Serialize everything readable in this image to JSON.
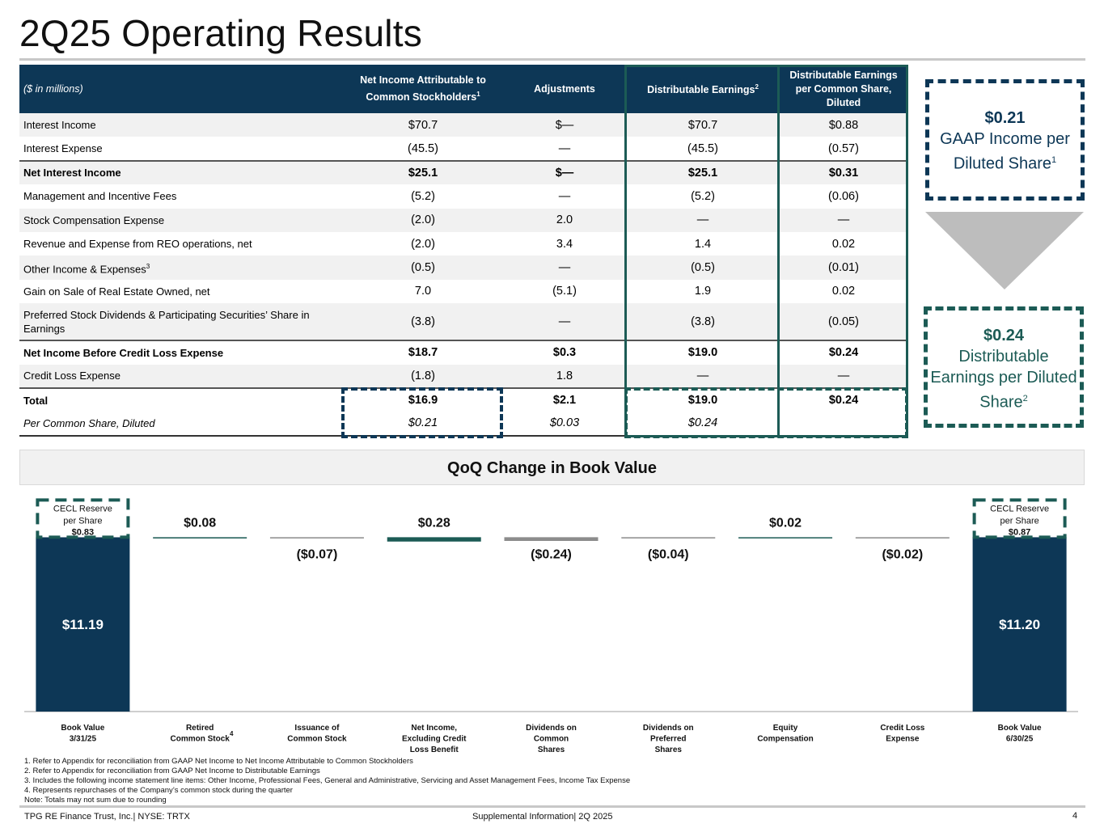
{
  "page": {
    "title": "2Q25 Operating Results"
  },
  "table": {
    "headers": [
      {
        "text": "($ in millions)",
        "sup": ""
      },
      {
        "text": "Net Income Attributable to Common Stockholders",
        "sup": "1"
      },
      {
        "text": "Adjustments",
        "sup": ""
      },
      {
        "text": "Distributable Earnings",
        "sup": "2"
      },
      {
        "text": "Distributable Earnings per Common Share, Diluted",
        "sup": ""
      }
    ],
    "rows": [
      {
        "label": "Interest Income",
        "sup": "",
        "values": [
          "$70.7",
          "$—",
          "$70.7",
          "$0.88"
        ]
      },
      {
        "label": "Interest Expense",
        "sup": "",
        "values": [
          "(45.5)",
          "—",
          "(45.5)",
          "(0.57)"
        ]
      },
      {
        "label": "Net Interest Income",
        "sup": "",
        "values": [
          "$25.1",
          "$—",
          "$25.1",
          "$0.31"
        ]
      },
      {
        "label": "Management and Incentive Fees",
        "sup": "",
        "values": [
          "(5.2)",
          "—",
          "(5.2)",
          "(0.06)"
        ]
      },
      {
        "label": "Stock Compensation Expense",
        "sup": "",
        "values": [
          "(2.0)",
          "2.0",
          "—",
          "—"
        ]
      },
      {
        "label": "Revenue and Expense from REO operations, net",
        "sup": "",
        "values": [
          "(2.0)",
          "3.4",
          "1.4",
          "0.02"
        ]
      },
      {
        "label": "Other Income & Expenses",
        "sup": "3",
        "values": [
          "(0.5)",
          "—",
          "(0.5)",
          "(0.01)"
        ]
      },
      {
        "label": "Gain on Sale of Real Estate Owned, net",
        "sup": "",
        "values": [
          "7.0",
          "(5.1)",
          "1.9",
          "0.02"
        ]
      },
      {
        "label": "Preferred Stock Dividends & Participating Securities’ Share in Earnings",
        "sup": "",
        "values": [
          "(3.8)",
          "—",
          "(3.8)",
          "(0.05)"
        ]
      },
      {
        "label": " Net Income Before Credit Loss Expense",
        "sup": "",
        "values": [
          "$18.7",
          "$0.3",
          "$19.0",
          "$0.24"
        ]
      },
      {
        "label": "Credit Loss Expense",
        "sup": "",
        "values": [
          "(1.8)",
          "1.8",
          "—",
          "—"
        ]
      },
      {
        "label": "Total",
        "sup": "",
        "values": [
          "$16.9",
          "$2.1",
          "$19.0",
          "$0.24"
        ]
      },
      {
        "label": "Per Common Share, Diluted",
        "sup": "",
        "values": [
          "$0.21",
          "$0.03",
          "$0.24",
          ""
        ]
      }
    ]
  },
  "side": {
    "gaap_value": "$0.21",
    "gaap_text": "GAAP Income per Diluted Share",
    "gaap_sup": "1",
    "de_value": "$0.24",
    "de_text": "Distributable Earnings per Diluted Share",
    "de_sup": "2"
  },
  "chart_data": {
    "type": "bar",
    "subtype": "waterfall",
    "title": "QoQ Change in Book Value",
    "categories": [
      "Book Value 3/31/25",
      "Retired Common Stock",
      "Issuance of Common Stock",
      "Net Income, Excluding Credit Loss Benefit",
      "Dividends on Common Shares",
      "Dividends on Preferred Shares",
      "Equity Compensation",
      "Credit Loss Expense",
      "Book Value 6/30/25"
    ],
    "category_lines": [
      [
        "Book Value",
        "3/31/25"
      ],
      [
        "Retired",
        "Common Stock"
      ],
      [
        "Issuance of",
        "Common Stock"
      ],
      [
        "Net Income,",
        "Excluding Credit",
        "Loss Benefit"
      ],
      [
        "Dividends on",
        "Common",
        "Shares"
      ],
      [
        "Dividends on",
        "Preferred",
        "Shares"
      ],
      [
        "Equity",
        "Compensation"
      ],
      [
        "Credit Loss",
        "Expense"
      ],
      [
        "Book Value",
        "6/30/25"
      ]
    ],
    "category_sup": [
      "",
      "4",
      "",
      "",
      "",
      "",
      "",
      "",
      ""
    ],
    "values": [
      11.19,
      0.08,
      -0.07,
      0.28,
      -0.24,
      -0.04,
      0.02,
      -0.02,
      11.2
    ],
    "labels": [
      "$11.19",
      "$0.08",
      "($0.07)",
      "$0.28",
      "($0.24)",
      "($0.04)",
      "$0.02",
      "($0.02)",
      "$11.20"
    ],
    "kinds": [
      "total",
      "delta",
      "delta",
      "delta",
      "delta",
      "delta",
      "delta",
      "delta",
      "total"
    ],
    "colors": {
      "total": "#0d3756",
      "positive": "#1c5b55",
      "negative": "#8c8c8c"
    },
    "cecl": {
      "start": {
        "line1": "CECL Reserve",
        "line2": "per Share",
        "value": "$0.83"
      },
      "end": {
        "line1": "CECL Reserve",
        "line2": "per Share",
        "value": "$0.87"
      }
    }
  },
  "footnotes": [
    "1. Refer to Appendix for reconciliation from GAAP Net Income  to Net Income  Attributable to Common Stockholders",
    "2. Refer to Appendix for reconciliation from GAAP Net Income  to Distributable Earnings",
    "3. Includes the following income statement line items: Other Income, Professional Fees, General and Administrative, Servicing and Asset Management Fees, Income Tax Expense",
    "4. Represents repurchases of the Company’s common stock during the quarter",
    "Note: Totals may not sum due to rounding"
  ],
  "footer": {
    "left": "TPG RE Finance Trust, Inc.| NYSE: TRTX",
    "middle": "Supplemental Information| 2Q 2025",
    "page_number": "4"
  }
}
